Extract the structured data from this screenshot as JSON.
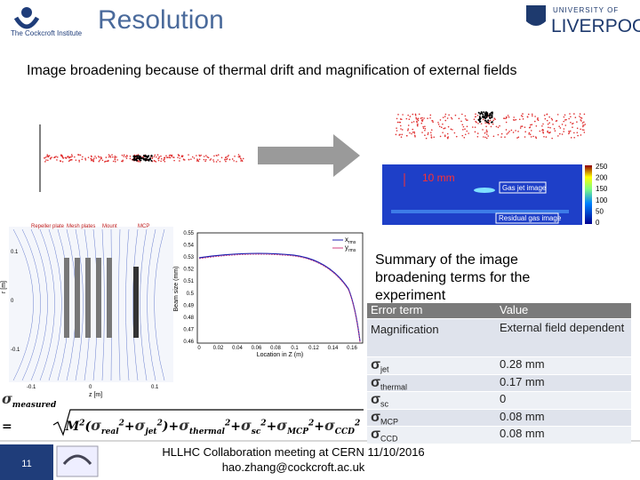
{
  "header": {
    "logo_text": "The Cockcroft Institute",
    "title": "Resolution",
    "university_small": "UNIVERSITY OF",
    "university_name": "LIVERPOOL"
  },
  "intro": "Image broadening because of thermal drift and magnification of external fields",
  "image_panel": {
    "scale": "10 mm",
    "gas_jet": "Gas jet image",
    "residual_gas": "Residual gas image",
    "colorbar_ticks": [
      "250",
      "200",
      "150",
      "100",
      "50",
      "0"
    ]
  },
  "field_map": {
    "labels": [
      "Repeller plate",
      "Mesh plates",
      "Mount",
      "MCP"
    ],
    "y_axis": "r [m]",
    "x_axis": "z [m]",
    "yticks": [
      "0.1",
      "0",
      "-0.1"
    ],
    "xticks": [
      "-0.1",
      "0",
      "0.1"
    ]
  },
  "beam_plot": {
    "y_axis": "Beam size (mm)",
    "x_axis": "Location in Z (m)",
    "yticks": [
      "0.55",
      "0.54",
      "0.53",
      "0.52",
      "0.51",
      "0.5",
      "0.49",
      "0.48",
      "0.47",
      "0.46"
    ],
    "xticks": [
      "0",
      "0.02",
      "0.04",
      "0.06",
      "0.08",
      "0.1",
      "0.12",
      "0.14",
      "0.16"
    ],
    "legend": [
      {
        "symbol": "x",
        "sub": "rms"
      },
      {
        "symbol": "y",
        "sub": "rms"
      }
    ]
  },
  "summary": "Summary of the image broadening terms for the experiment",
  "table": {
    "header": [
      "Error term",
      "Value"
    ],
    "rows": [
      [
        {
          "text": "Magnification"
        },
        "External field dependent"
      ],
      [
        {
          "symbol": "σ",
          "sub": "jet"
        },
        "0.28 mm"
      ],
      [
        {
          "symbol": "σ",
          "sub": "thermal"
        },
        "0.17 mm"
      ],
      [
        {
          "symbol": "σ",
          "sub": "sc"
        },
        "0"
      ],
      [
        {
          "symbol": "σ",
          "sub": "MCP"
        },
        "0.08 mm"
      ],
      [
        {
          "symbol": "σ",
          "sub": "CCD"
        },
        "0.08 mm"
      ]
    ]
  },
  "formula": {
    "lhs": {
      "symbol": "σ",
      "sub": "measured"
    },
    "equals": "=",
    "m": "M",
    "square": "2",
    "open": "(",
    "close": ")",
    "plus": "+",
    "inner": [
      {
        "symbol": "σ",
        "sub": "real"
      },
      {
        "symbol": "σ",
        "sub": "jet"
      }
    ],
    "outer": [
      {
        "symbol": "σ",
        "sub": "thermal"
      },
      {
        "symbol": "σ",
        "sub": "sc"
      },
      {
        "symbol": "σ",
        "sub": "MCP"
      },
      {
        "symbol": "σ",
        "sub": "CCD"
      }
    ]
  },
  "footer": {
    "slide_number": "11",
    "line1": "HLLHC Collaboration meeting at CERN 11/10/2016",
    "line2": "hao.zhang@cockcroft.ac.uk"
  }
}
